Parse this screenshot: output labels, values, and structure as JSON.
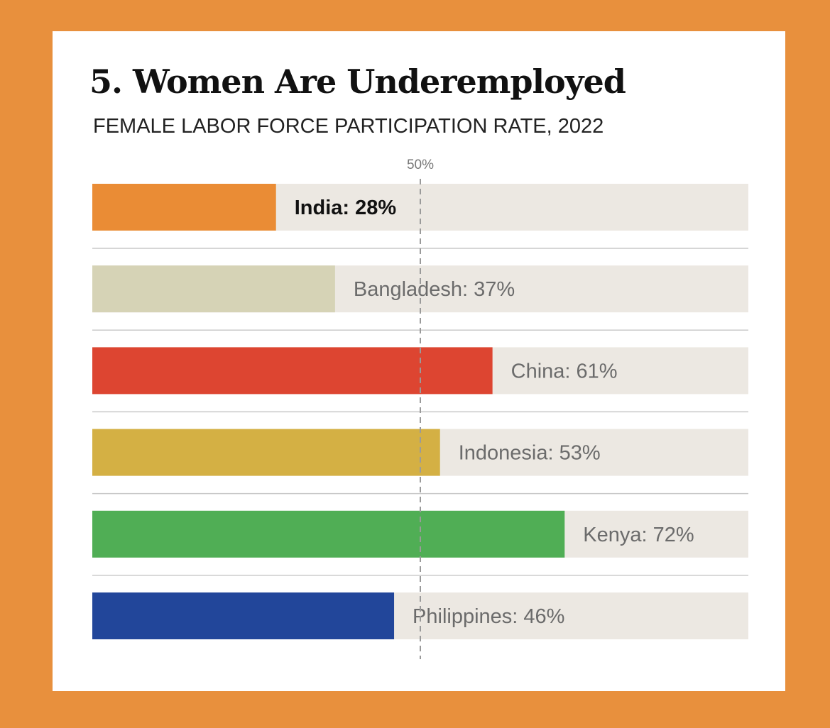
{
  "title": "5. Women Are Underemployed",
  "subtitle": "FEMALE LABOR FORCE PARTICIPATION RATE, 2022",
  "chart_data": {
    "type": "bar",
    "orientation": "horizontal",
    "categories": [
      "India",
      "Bangladesh",
      "China",
      "Indonesia",
      "Kenya",
      "Philippines"
    ],
    "values": [
      28,
      37,
      61,
      53,
      72,
      46
    ],
    "value_labels": [
      "India: 28%",
      "Bangladesh: 37%",
      "China: 61%",
      "Indonesia: 53%",
      "Kenya: 72%",
      "Philippines: 46%"
    ],
    "colors": [
      "#ea8c35",
      "#d6d3b6",
      "#dd4531",
      "#d4b044",
      "#50ae55",
      "#22469a"
    ],
    "track_color": "#ece8e2",
    "xlim": [
      0,
      100
    ],
    "reference_line": {
      "value": 50,
      "label": "50%"
    },
    "highlight": "India",
    "grid": false,
    "legend": "none"
  }
}
